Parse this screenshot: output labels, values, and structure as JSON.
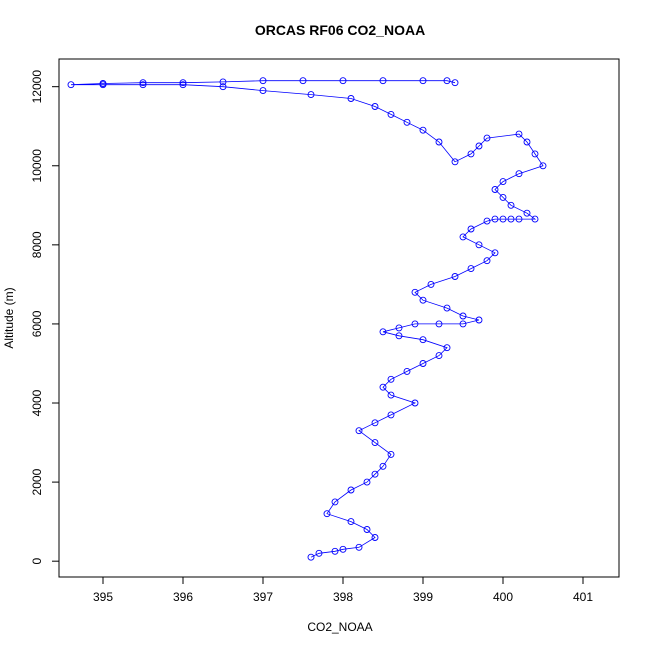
{
  "chart_data": {
    "type": "scatter",
    "title": "ORCAS RF06 CO2_NOAA",
    "xlabel": "CO2_NOAA",
    "ylabel": "Altitude (m)",
    "xlim": [
      394.45,
      401.45
    ],
    "ylim": [
      -400,
      12700
    ],
    "xticks": [
      395,
      396,
      397,
      398,
      399,
      400,
      401
    ],
    "yticks": [
      0,
      2000,
      4000,
      6000,
      8000,
      10000,
      12000
    ],
    "marker": "open-circle",
    "connected": true,
    "grid": false,
    "color": "#0000FF",
    "series": [
      {
        "name": "",
        "x": [
          397.6,
          397.7,
          397.9,
          398.0,
          398.2,
          398.4,
          398.3,
          398.1,
          397.8,
          397.9,
          398.1,
          398.3,
          398.4,
          398.5,
          398.6,
          398.4,
          398.2,
          398.4,
          398.6,
          398.9,
          398.6,
          398.5,
          398.6,
          398.8,
          399.0,
          399.2,
          399.3,
          399.0,
          398.7,
          398.5,
          398.7,
          398.9,
          399.2,
          399.5,
          399.7,
          399.5,
          399.3,
          399.0,
          398.9,
          399.1,
          399.4,
          399.6,
          399.8,
          399.9,
          399.7,
          399.5,
          399.6,
          399.8,
          399.9,
          400.0,
          400.1,
          400.2,
          400.4,
          400.3,
          400.1,
          400.0,
          399.9,
          400.0,
          400.2,
          400.5,
          400.4,
          400.3,
          400.2,
          399.8,
          399.7,
          399.6,
          399.4,
          399.2,
          399.0,
          398.8,
          398.6,
          398.4,
          398.1,
          397.6,
          397.0,
          396.5,
          396.0,
          395.5,
          395.0,
          394.6,
          395.0,
          395.5,
          396.0,
          396.5,
          397.0,
          397.5,
          398.0,
          398.5,
          399.0,
          399.3,
          399.4
        ],
        "y": [
          100,
          200,
          250,
          300,
          350,
          600,
          800,
          1000,
          1200,
          1500,
          1800,
          2000,
          2200,
          2400,
          2700,
          3000,
          3300,
          3500,
          3700,
          4000,
          4200,
          4400,
          4600,
          4800,
          5000,
          5200,
          5400,
          5600,
          5700,
          5800,
          5900,
          6000,
          6000,
          6000,
          6100,
          6200,
          6400,
          6600,
          6800,
          7000,
          7200,
          7400,
          7600,
          7800,
          8000,
          8200,
          8400,
          8600,
          8650,
          8650,
          8650,
          8650,
          8650,
          8800,
          9000,
          9200,
          9400,
          9600,
          9800,
          10000,
          10300,
          10600,
          10800,
          10700,
          10500,
          10300,
          10100,
          10600,
          10900,
          11100,
          11300,
          11500,
          11700,
          11800,
          11900,
          12000,
          12050,
          12050,
          12050,
          12050,
          12080,
          12100,
          12100,
          12120,
          12150,
          12150,
          12150,
          12150,
          12150,
          12150,
          12100
        ]
      }
    ]
  }
}
